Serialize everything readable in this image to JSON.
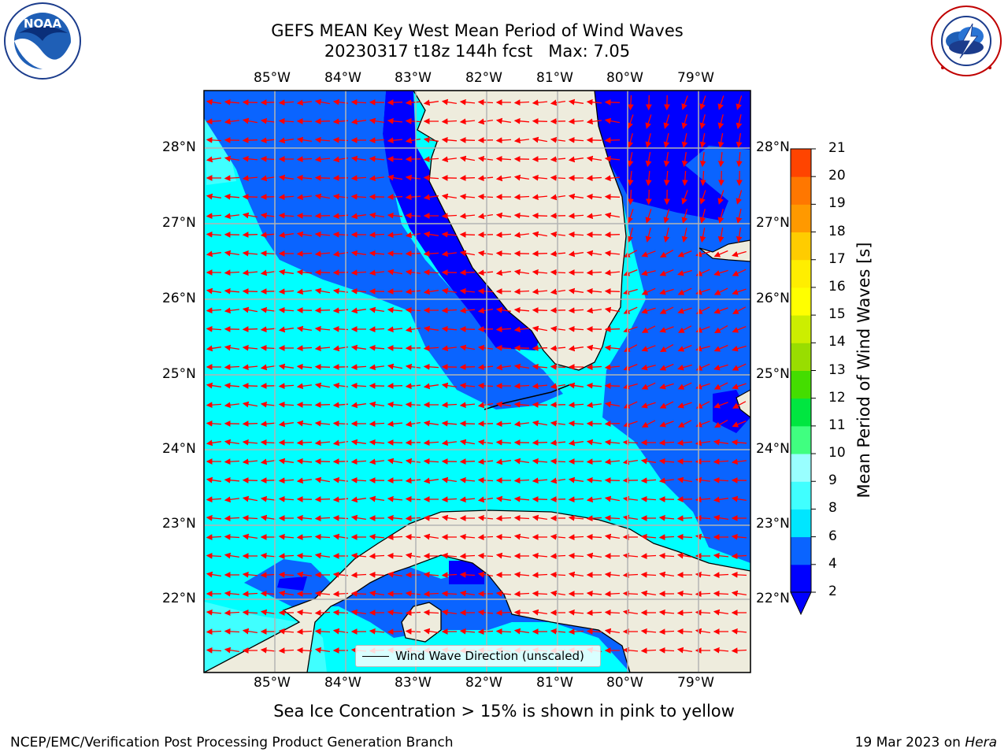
{
  "header": {
    "title_line1": "GEFS MEAN Key West Mean Period of Wind Waves",
    "title_line2": "20230317 t18z 144h fcst   Max: 7.05"
  },
  "logos": {
    "left": {
      "name": "NOAA",
      "text": "NOAA",
      "ring_text": "NATIONAL OCEANIC AND ATMOSPHERIC ADMINISTRATION · U.S. DEPARTMENT OF COMMERCE"
    },
    "right": {
      "name": "National Weather Service",
      "ring_text": "NATIONAL WEATHER SERVICE"
    }
  },
  "map": {
    "lon_labels": [
      "85°W",
      "84°W",
      "83°W",
      "82°W",
      "81°W",
      "80°W",
      "79°W"
    ],
    "lat_labels": [
      "28°N",
      "27°N",
      "26°N",
      "25°N",
      "24°N",
      "23°N",
      "22°N"
    ],
    "land_color": "#eeecdd",
    "arrow_color": "#ff0000",
    "grid_color": "#b3b3b3",
    "legend_text": "Wind Wave Direction (unscaled)"
  },
  "colorbar": {
    "label": "Mean Period of Wind Waves [s]",
    "ticks": [
      "2",
      "4",
      "6",
      "8",
      "9",
      "10",
      "11",
      "12",
      "13",
      "14",
      "15",
      "16",
      "17",
      "18",
      "19",
      "20",
      "21"
    ],
    "colors": [
      "#0000ff",
      "#0a64ff",
      "#00e6ff",
      "#40ffff",
      "#99ffff",
      "#40ff80",
      "#00e640",
      "#44dd00",
      "#99dd00",
      "#ccee00",
      "#ffff00",
      "#ffee00",
      "#ffcc00",
      "#ff9900",
      "#ff7700",
      "#ff4400",
      "#ff0000"
    ],
    "under_color": "#0000ff"
  },
  "caption": "Sea Ice Concentration > 15% is shown in pink to yellow",
  "footer": {
    "left": "NCEP/EMC/Verification Post Processing Product Generation Branch",
    "right_date": "19 Mar 2023 on ",
    "right_host": "Hera"
  }
}
